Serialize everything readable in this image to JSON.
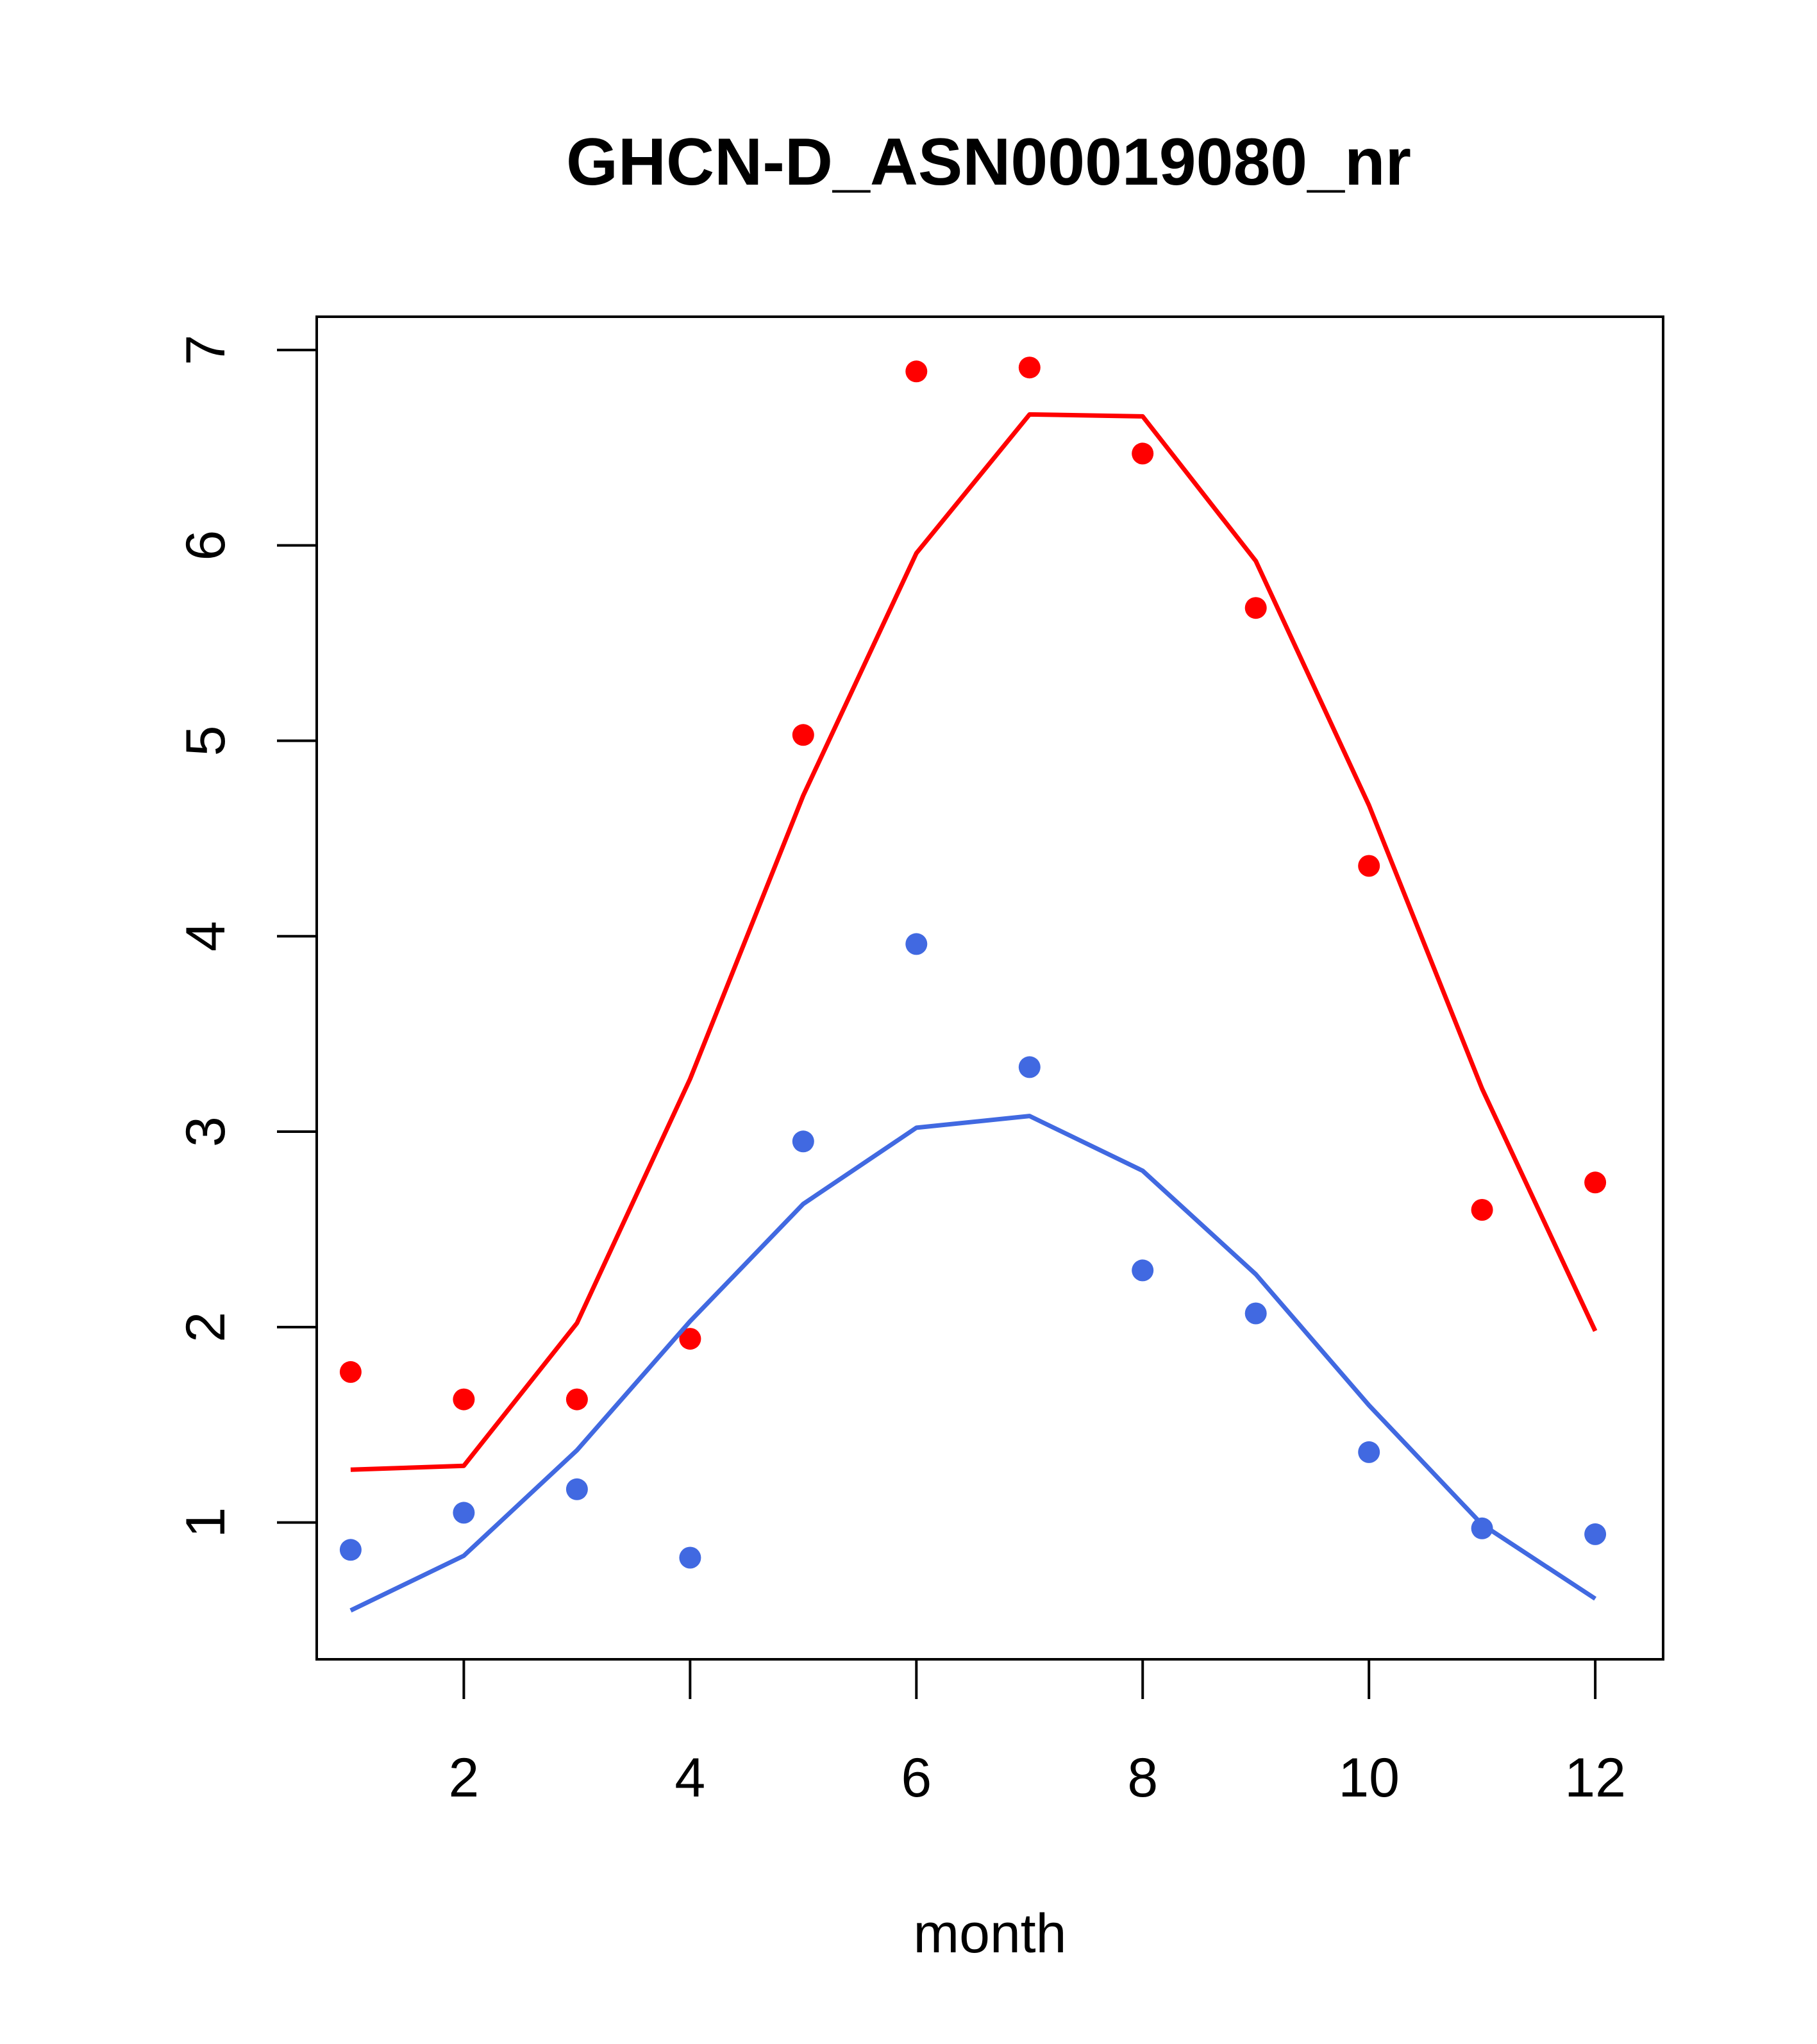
{
  "chart_data": {
    "type": "scatter",
    "title": "GHCN-D_ASN00019080_nr",
    "xlabel": "month",
    "ylabel": "",
    "xlim": [
      0.7,
      12.6
    ],
    "ylim": [
      0.3,
      7.17
    ],
    "xticks": [
      "2",
      "4",
      "6",
      "8",
      "10",
      "12"
    ],
    "yticks": [
      "1",
      "2",
      "3",
      "4",
      "5",
      "6",
      "7"
    ],
    "grid": false,
    "legend": "none",
    "x": [
      1,
      2,
      3,
      4,
      5,
      6,
      7,
      8,
      9,
      10,
      11,
      12
    ],
    "series": [
      {
        "color": "#ff0000",
        "points": [
          1.77,
          1.63,
          1.63,
          1.94,
          5.03,
          6.89,
          6.91,
          6.47,
          5.68,
          4.36,
          2.6,
          2.74
        ],
        "line": [
          1.27,
          1.29,
          2.02,
          3.27,
          4.72,
          5.96,
          6.67,
          6.66,
          5.92,
          4.67,
          3.22,
          1.98
        ]
      },
      {
        "color": "#4169e1",
        "points": [
          0.86,
          1.05,
          1.17,
          0.82,
          2.95,
          3.96,
          3.33,
          2.29,
          2.07,
          1.36,
          0.97,
          0.94
        ],
        "line": [
          0.55,
          0.83,
          1.37,
          2.03,
          2.63,
          3.02,
          3.08,
          2.8,
          2.27,
          1.6,
          0.99,
          0.61
        ]
      }
    ]
  }
}
